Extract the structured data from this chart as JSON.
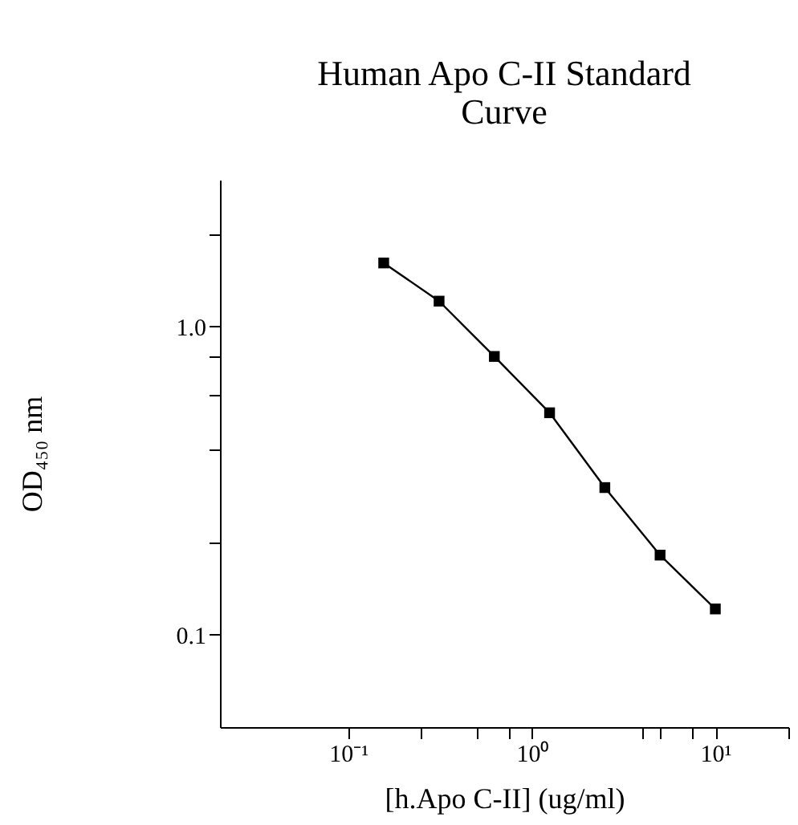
{
  "chart_data": {
    "type": "line",
    "title": "Human Apo C-II Standard Curve",
    "xlabel": "[h.Apo C-II] (ug/ml)",
    "ylabel": "OD₄₅₀ nm",
    "x": [
      0.156,
      0.3125,
      0.625,
      1.25,
      2.5,
      5,
      10
    ],
    "series": [
      {
        "color": "#000000",
        "values": [
          1.61,
          1.21,
          0.8,
          0.525,
          0.3,
          0.181,
          0.121
        ]
      }
    ],
    "log": "xy",
    "xlim": [
      0.02,
      25
    ],
    "ylim": [
      0.05,
      3
    ],
    "xticks": [
      {
        "value": 0.1,
        "label": "10⁻¹"
      },
      {
        "value": 0.25,
        "label": null
      },
      {
        "value": 0.5,
        "label": null
      },
      {
        "value": 0.75,
        "label": null
      },
      {
        "value": 1,
        "label": "10⁰"
      },
      {
        "value": 4,
        "label": null
      },
      {
        "value": 5,
        "label": null
      },
      {
        "value": 7.5,
        "label": null
      },
      {
        "value": 10,
        "label": "10¹"
      },
      {
        "value": 25,
        "label": null
      }
    ],
    "yticks": [
      {
        "value": 0.1,
        "label": "0.1"
      },
      {
        "value": 0.2,
        "label": null
      },
      {
        "value": 0.4,
        "label": null
      },
      {
        "value": 0.6,
        "label": null
      },
      {
        "value": 0.8,
        "label": null
      },
      {
        "value": 1,
        "label": "1.0"
      },
      {
        "value": 2,
        "label": null
      }
    ],
    "grid": false,
    "marker": "square",
    "line_style": "solid"
  }
}
